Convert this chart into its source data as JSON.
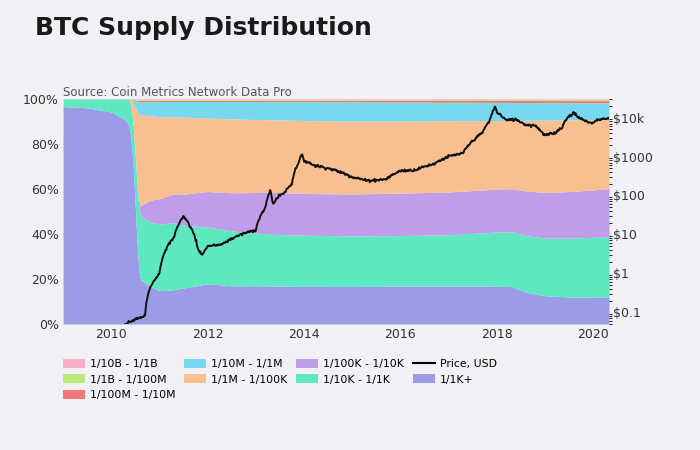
{
  "title": "BTC Supply Distribution",
  "source": "Source: Coin Metrics Network Data Pro",
  "background_color": "#f0f0f5",
  "plot_background": "#ffffff",
  "layers": [
    {
      "label": "1/1K+",
      "color": "#9b9be8"
    },
    {
      "label": "1/10K - 1/1K",
      "color": "#5de8c0"
    },
    {
      "label": "1/100K - 1/10K",
      "color": "#c09de8"
    },
    {
      "label": "1/1M - 1/100K",
      "color": "#f8c090"
    },
    {
      "label": "1/10M - 1/1M",
      "color": "#78d8f0"
    },
    {
      "label": "1/100M - 1/10M",
      "color": "#f07878"
    },
    {
      "label": "1/1B - 1/100M",
      "color": "#b8e878"
    },
    {
      "label": "1/10B - 1/1B",
      "color": "#f8b0c8"
    }
  ],
  "legend_order": [
    {
      "label": "1/10B - 1/1B",
      "color": "#f8b0c8"
    },
    {
      "label": "1/1B - 1/100M",
      "color": "#b8e878"
    },
    {
      "label": "1/100M - 1/10M",
      "color": "#f07878"
    },
    {
      "label": "1/10M - 1/1M",
      "color": "#78d8f0"
    },
    {
      "label": "1/1M - 1/100K",
      "color": "#f8c090"
    },
    {
      "label": "1/100K - 1/10K",
      "color": "#c09de8"
    },
    {
      "label": "1/10K - 1/1K",
      "color": "#5de8c0"
    },
    {
      "label": "Price, USD",
      "color": "#000000"
    },
    {
      "label": "1/1K+",
      "color": "#9b9be8"
    }
  ],
  "price_color": "#111111",
  "price_linewidth": 1.4,
  "xlim": [
    2009.0,
    2020.33
  ],
  "ylim": [
    0,
    1.0
  ],
  "price_ylim_log": [
    0.05,
    30000
  ],
  "yticks_left": [
    0.0,
    0.2,
    0.4,
    0.6,
    0.8,
    1.0
  ],
  "ytick_labels_left": [
    "0%",
    "20%",
    "40%",
    "60%",
    "80%",
    "100%"
  ],
  "yticks_right": [
    0.1,
    1,
    10,
    100,
    1000,
    10000
  ],
  "ytick_labels_right": [
    "$0.1",
    "$1",
    "$10",
    "$100",
    "$1000",
    "$10k"
  ],
  "xticks": [
    2010,
    2012,
    2014,
    2016,
    2018,
    2020
  ],
  "title_fontsize": 18,
  "source_fontsize": 8.5,
  "tick_fontsize": 9
}
